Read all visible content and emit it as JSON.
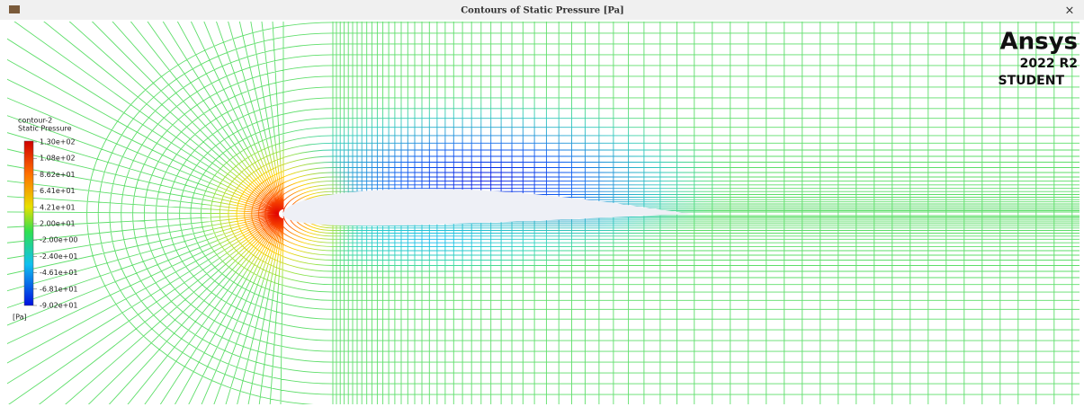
{
  "window": {
    "title": "Contours of Static Pressure [Pa]",
    "close": "×"
  },
  "branding": {
    "name": "Ansys",
    "version": "2022 R2",
    "edition": "STUDENT"
  },
  "legend": {
    "name": "contour-2",
    "variable": "Static Pressure",
    "labels": [
      "1.30e+02",
      "1.08e+02",
      "8.62e+01",
      "6.41e+01",
      "4.21e+01",
      "2.00e+01",
      "-2.00e+00",
      "-2.40e+01",
      "-4.61e+01",
      "-6.81e+01",
      "-9.02e+01"
    ],
    "unit": "[Pa]"
  }
}
